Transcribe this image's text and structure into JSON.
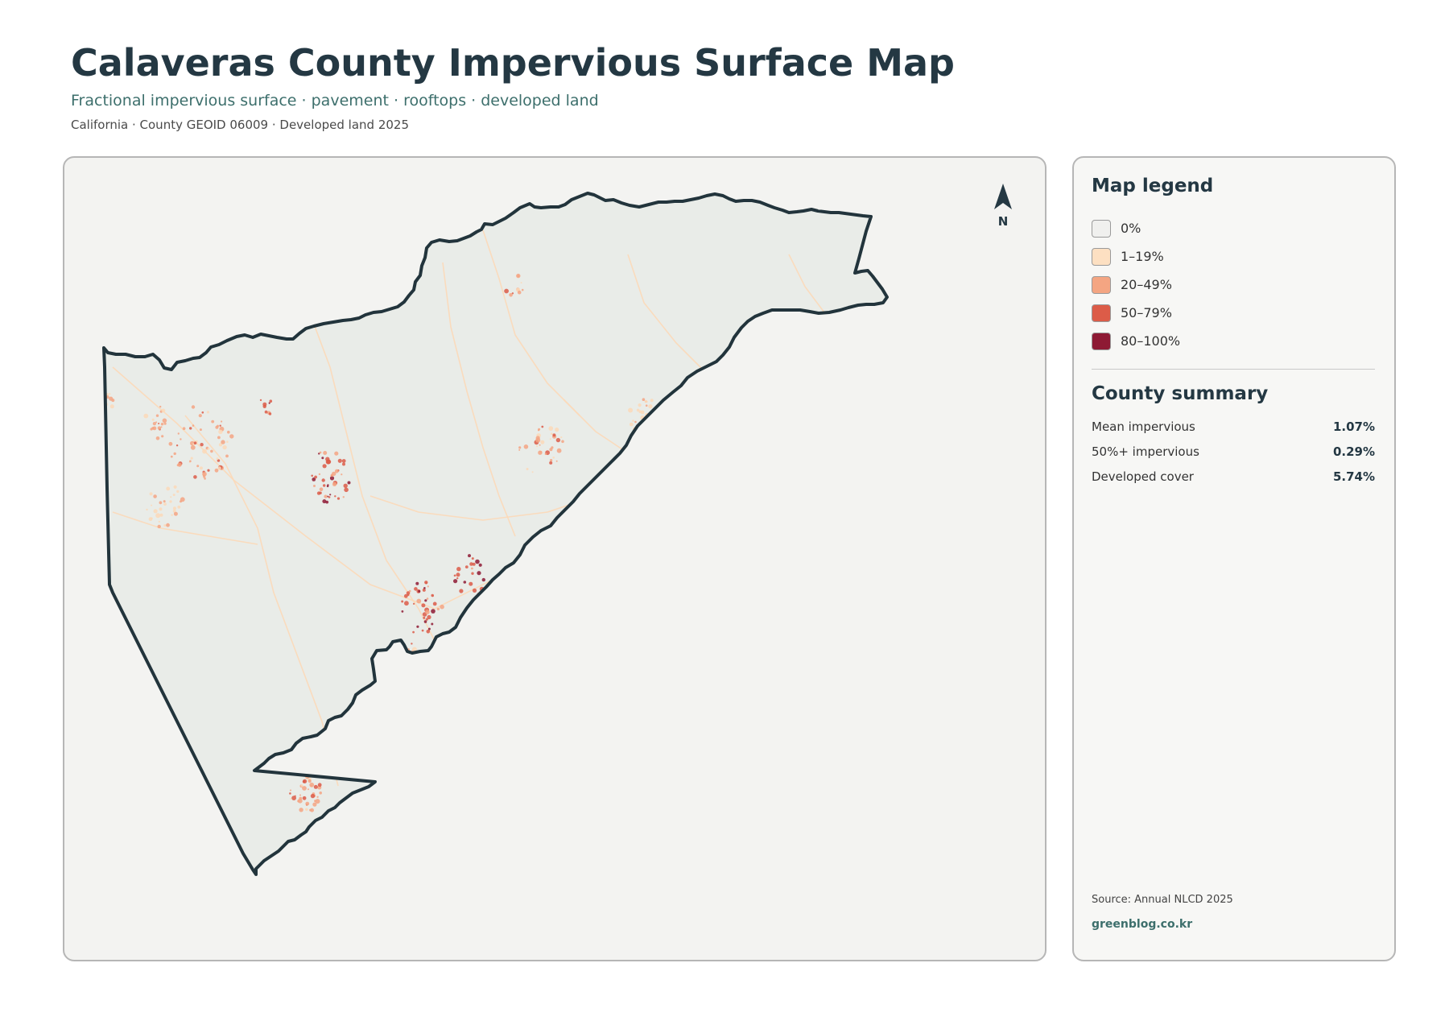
{
  "header": {
    "title": "Calaveras County Impervious Surface Map",
    "subtitle": "Fractional impervious surface · pavement · rooftops · developed land",
    "meta": "California · County GEOID 06009 · Developed land 2025"
  },
  "map": {
    "north_label": "N",
    "fill_color": "#e9ece8",
    "outline_color": "#22343c",
    "hotspot_colors": [
      "#fcd9b8",
      "#f4a582",
      "#dc5c48",
      "#8e1a34"
    ]
  },
  "legend": {
    "heading": "Map legend",
    "items": [
      {
        "label": "0%",
        "color": "#f0f0ee"
      },
      {
        "label": "1–19%",
        "color": "#fde0c2"
      },
      {
        "label": "20–49%",
        "color": "#f4a582"
      },
      {
        "label": "50–79%",
        "color": "#dc5c48"
      },
      {
        "label": "80–100%",
        "color": "#8e1a34"
      }
    ]
  },
  "summary": {
    "heading": "County summary",
    "rows": [
      {
        "label": "Mean impervious",
        "value": "1.07%"
      },
      {
        "label": "50%+ impervious",
        "value": "0.29%"
      },
      {
        "label": "Developed cover",
        "value": "5.74%"
      }
    ]
  },
  "footer": {
    "source": "Source: Annual NLCD 2025",
    "site": "greenblog.co.kr"
  }
}
